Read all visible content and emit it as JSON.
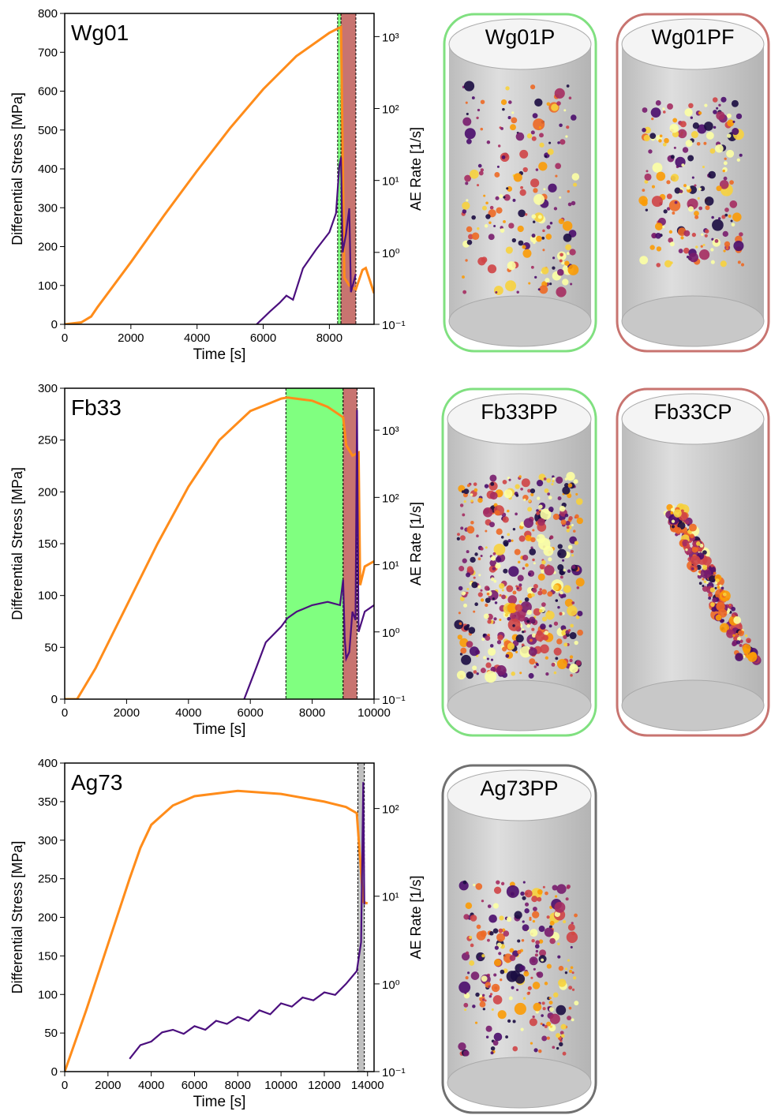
{
  "chart_data": [
    {
      "type": "line",
      "title": "Wg01",
      "xlabel": "Time [s]",
      "ylabel": "Differential Stress [MPa]",
      "y2label": "AE Rate [1/s]",
      "xlim": [
        0,
        9350
      ],
      "xticks": [
        0,
        2000,
        4000,
        6000,
        8000
      ],
      "ylim": [
        0,
        800
      ],
      "yticks": [
        0,
        100,
        200,
        300,
        400,
        500,
        600,
        700,
        800
      ],
      "y2lim": [
        0.1,
        2100
      ],
      "y2log": true,
      "y2ticks": [
        {
          "value": 0.1,
          "label": "10⁻¹"
        },
        {
          "value": 1,
          "label": "10⁰"
        },
        {
          "value": 10,
          "label": "10¹"
        },
        {
          "value": 100,
          "label": "10²"
        },
        {
          "value": 1000,
          "label": "10³"
        }
      ],
      "spans": [
        {
          "x0": 8250,
          "x1": 8350,
          "color": "#80ff80"
        },
        {
          "x0": 8350,
          "x1": 8800,
          "color": "#c87470"
        }
      ],
      "series": [
        {
          "name": "Differential Stress",
          "color": "#ff8c1a",
          "axis": "y",
          "x": [
            0,
            500,
            800,
            1000,
            2000,
            3000,
            4000,
            5000,
            6000,
            7000,
            8000,
            8350,
            8450,
            8600,
            8800,
            9000,
            9100,
            9350
          ],
          "values": [
            0,
            5,
            20,
            45,
            160,
            280,
            395,
            505,
            605,
            690,
            750,
            765,
            120,
            100,
            90,
            140,
            145,
            80
          ]
        },
        {
          "name": "AE Rate",
          "color": "#4b0f7e",
          "axis": "y2",
          "x": [
            5800,
            6200,
            6500,
            6700,
            6900,
            7200,
            7600,
            8000,
            8200,
            8300,
            8350,
            8400,
            8500,
            8600,
            8650,
            8800
          ],
          "values": [
            0.1,
            0.15,
            0.2,
            0.25,
            0.22,
            0.6,
            1.1,
            1.9,
            3.5,
            16,
            21,
            1.0,
            1.8,
            4.1,
            0.28,
            0.5
          ]
        }
      ]
    },
    {
      "type": "line",
      "title": "Fb33",
      "xlabel": "Time [s]",
      "ylabel": "Differential Stress [MPa]",
      "y2label": "AE Rate [1/s]",
      "xlim": [
        0,
        10000
      ],
      "xticks": [
        0,
        2000,
        4000,
        6000,
        8000,
        10000
      ],
      "ylim": [
        0,
        300
      ],
      "yticks": [
        0,
        50,
        100,
        150,
        200,
        250,
        300
      ],
      "y2lim": [
        0.1,
        4200
      ],
      "y2log": true,
      "y2ticks": [
        {
          "value": 0.1,
          "label": "10⁻¹"
        },
        {
          "value": 1,
          "label": "10⁰"
        },
        {
          "value": 10,
          "label": "10¹"
        },
        {
          "value": 100,
          "label": "10²"
        },
        {
          "value": 1000,
          "label": "10³"
        }
      ],
      "spans": [
        {
          "x0": 7150,
          "x1": 9000,
          "color": "#80ff80"
        },
        {
          "x0": 9000,
          "x1": 9450,
          "color": "#c87470"
        }
      ],
      "series": [
        {
          "name": "Differential Stress",
          "color": "#ff8c1a",
          "axis": "y",
          "x": [
            0,
            400,
            1000,
            2000,
            3000,
            4000,
            5000,
            6000,
            7000,
            7200,
            8000,
            8500,
            9000,
            9100,
            9300,
            9500,
            9550,
            9700,
            10000
          ],
          "values": [
            0,
            0,
            30,
            90,
            150,
            205,
            250,
            278,
            290,
            291,
            288,
            282,
            272,
            245,
            235,
            238,
            110,
            128,
            133
          ]
        },
        {
          "name": "AE Rate",
          "color": "#4b0f7e",
          "axis": "y2",
          "x": [
            5800,
            6200,
            6500,
            7000,
            7200,
            7500,
            8000,
            8500,
            8900,
            9000,
            9050,
            9100,
            9200,
            9300,
            9400,
            9450,
            9500,
            9700,
            10000
          ],
          "values": [
            0.1,
            0.3,
            0.7,
            1.2,
            1.6,
            2,
            2.5,
            2.8,
            2.5,
            6,
            0.8,
            0.4,
            0.5,
            2,
            1.5,
            2000,
            1,
            2,
            2.5
          ]
        }
      ]
    },
    {
      "type": "line",
      "title": "Ag73",
      "xlabel": "Time [s]",
      "ylabel": "Differential Stress [MPa]",
      "y2label": "AE Rate [1/s]",
      "xlim": [
        0,
        14300
      ],
      "xticks": [
        0,
        2000,
        4000,
        6000,
        8000,
        10000,
        12000,
        14000
      ],
      "ylim": [
        0,
        400
      ],
      "yticks": [
        0,
        50,
        100,
        150,
        200,
        250,
        300,
        350,
        400
      ],
      "y2lim": [
        0.1,
        330
      ],
      "y2log": true,
      "y2ticks": [
        {
          "value": 0.1,
          "label": "10⁻¹"
        },
        {
          "value": 1,
          "label": "10⁰"
        },
        {
          "value": 10,
          "label": "10¹"
        },
        {
          "value": 100,
          "label": "10²"
        }
      ],
      "spans": [
        {
          "x0": 13550,
          "x1": 13850,
          "color": "#c0c0c0"
        }
      ],
      "series": [
        {
          "name": "Differential Stress",
          "color": "#ff8c1a",
          "axis": "y",
          "x": [
            0,
            1000,
            2000,
            3000,
            3500,
            4000,
            5000,
            6000,
            8000,
            10000,
            12000,
            13000,
            13500,
            13800,
            14000
          ],
          "values": [
            0,
            80,
            165,
            250,
            290,
            320,
            345,
            357,
            364,
            360,
            350,
            343,
            335,
            220,
            218
          ]
        },
        {
          "name": "AE Rate",
          "color": "#4b0f7e",
          "axis": "y2",
          "x": [
            3000,
            3500,
            4000,
            4500,
            5000,
            5500,
            6000,
            6500,
            7000,
            7500,
            8000,
            8500,
            9000,
            9500,
            10000,
            10500,
            11000,
            11500,
            12000,
            12500,
            13000,
            13500,
            13700,
            13800,
            13850
          ],
          "values": [
            0.14,
            0.2,
            0.22,
            0.28,
            0.3,
            0.27,
            0.33,
            0.3,
            0.38,
            0.35,
            0.42,
            0.38,
            0.5,
            0.45,
            0.6,
            0.55,
            0.7,
            0.65,
            0.8,
            0.75,
            1.0,
            1.4,
            3,
            200,
            8
          ]
        }
      ]
    }
  ],
  "specimens": [
    {
      "label": "Wg01P",
      "color": "#80e080"
    },
    {
      "label": "Wg01PF",
      "color": "#c87470"
    },
    {
      "label": "Fb33PP",
      "color": "#80e080"
    },
    {
      "label": "Fb33CP",
      "color": "#c87470"
    },
    {
      "label": "Ag73PP",
      "color": "#707070"
    }
  ]
}
